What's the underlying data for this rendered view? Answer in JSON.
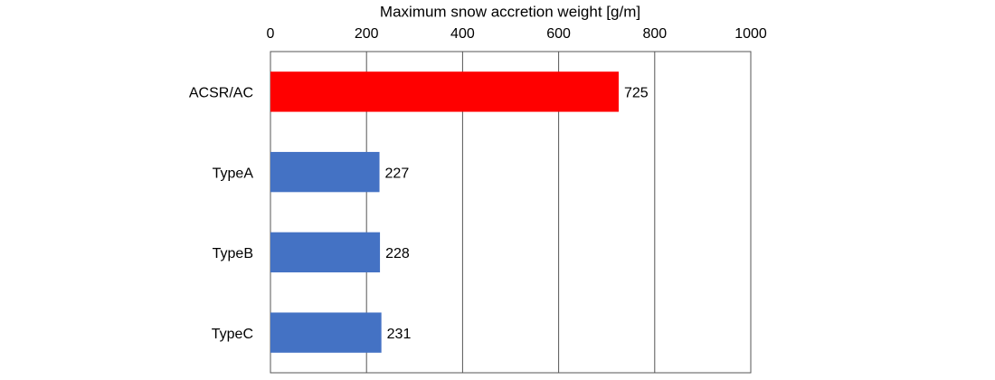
{
  "chart_data": {
    "type": "bar",
    "orientation": "horizontal",
    "xlabel": "Maximum snow accretion weight [g/m]",
    "categories": [
      "ACSR/AC",
      "TypeA",
      "TypeB",
      "TypeC"
    ],
    "values": [
      725,
      227,
      228,
      231
    ],
    "colors": [
      "#ff0000",
      "#4472c4",
      "#4472c4",
      "#4472c4"
    ],
    "xlim": [
      0,
      1000
    ],
    "xticks": [
      0,
      200,
      400,
      600,
      800,
      1000
    ],
    "grid": true
  }
}
